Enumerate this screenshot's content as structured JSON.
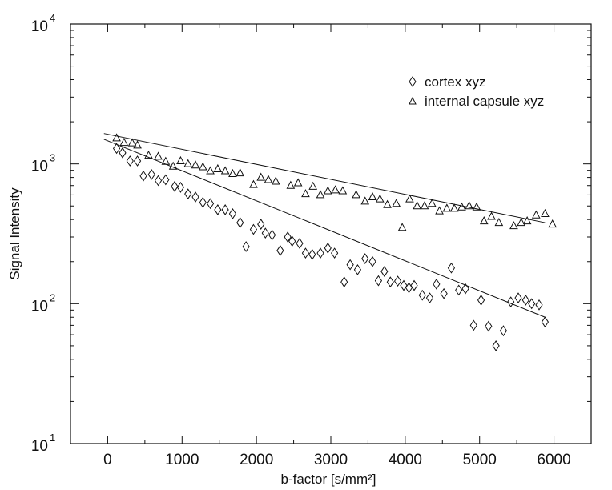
{
  "chart_data": {
    "type": "scatter",
    "title": "",
    "xlabel": "b-factor [s/mm²]",
    "ylabel": "Signal Intensity",
    "xlim": [
      -500,
      6500
    ],
    "ylim": [
      10,
      10000
    ],
    "yscale": "log",
    "grid": false,
    "legend_position": "top-right",
    "x_ticks": [
      0,
      1000,
      2000,
      3000,
      4000,
      5000,
      6000
    ],
    "x_tick_labels": [
      "0",
      "1000",
      "2000",
      "3000",
      "4000",
      "5000",
      "6000"
    ],
    "y_ticks": [
      10,
      100,
      1000,
      10000
    ],
    "y_tick_labels": [
      {
        "base": "10",
        "exp": "1"
      },
      {
        "base": "10",
        "exp": "2"
      },
      {
        "base": "10",
        "exp": "3"
      },
      {
        "base": "10",
        "exp": "4"
      }
    ],
    "series": [
      {
        "name": "cortex xyz",
        "marker": "diamond",
        "points": [
          [
            120,
            1290
          ],
          [
            200,
            1200
          ],
          [
            300,
            1050
          ],
          [
            400,
            1050
          ],
          [
            480,
            820
          ],
          [
            590,
            840
          ],
          [
            680,
            760
          ],
          [
            780,
            770
          ],
          [
            900,
            690
          ],
          [
            980,
            680
          ],
          [
            1080,
            610
          ],
          [
            1180,
            580
          ],
          [
            1280,
            530
          ],
          [
            1380,
            520
          ],
          [
            1480,
            470
          ],
          [
            1580,
            470
          ],
          [
            1680,
            440
          ],
          [
            1780,
            380
          ],
          [
            1860,
            256
          ],
          [
            1960,
            340
          ],
          [
            2060,
            370
          ],
          [
            2120,
            320
          ],
          [
            2210,
            310
          ],
          [
            2320,
            240
          ],
          [
            2420,
            300
          ],
          [
            2480,
            280
          ],
          [
            2580,
            270
          ],
          [
            2660,
            230
          ],
          [
            2750,
            225
          ],
          [
            2860,
            230
          ],
          [
            2960,
            250
          ],
          [
            3050,
            230
          ],
          [
            3180,
            143
          ],
          [
            3260,
            190
          ],
          [
            3360,
            175
          ],
          [
            3460,
            210
          ],
          [
            3560,
            200
          ],
          [
            3640,
            146
          ],
          [
            3720,
            170
          ],
          [
            3800,
            143
          ],
          [
            3900,
            145
          ],
          [
            3980,
            135
          ],
          [
            4050,
            130
          ],
          [
            4120,
            135
          ],
          [
            4230,
            115
          ],
          [
            4330,
            110
          ],
          [
            4420,
            138
          ],
          [
            4520,
            118
          ],
          [
            4620,
            180
          ],
          [
            4720,
            125
          ],
          [
            4810,
            128
          ],
          [
            4920,
            70
          ],
          [
            5020,
            106
          ],
          [
            5120,
            69
          ],
          [
            5220,
            50
          ],
          [
            5320,
            64
          ],
          [
            5420,
            103
          ],
          [
            5520,
            110
          ],
          [
            5620,
            106
          ],
          [
            5700,
            100
          ],
          [
            5800,
            98
          ],
          [
            5880,
            74
          ]
        ],
        "fit": {
          "x": [
            -50,
            5880
          ],
          "y": [
            1500,
            80
          ]
        }
      },
      {
        "name": "internal capsule xyz",
        "marker": "triangle",
        "points": [
          [
            120,
            1530
          ],
          [
            220,
            1420
          ],
          [
            330,
            1410
          ],
          [
            400,
            1360
          ],
          [
            550,
            1150
          ],
          [
            680,
            1130
          ],
          [
            780,
            1040
          ],
          [
            880,
            960
          ],
          [
            980,
            1050
          ],
          [
            1080,
            1000
          ],
          [
            1180,
            980
          ],
          [
            1280,
            950
          ],
          [
            1380,
            890
          ],
          [
            1480,
            920
          ],
          [
            1580,
            890
          ],
          [
            1680,
            850
          ],
          [
            1780,
            860
          ],
          [
            1960,
            710
          ],
          [
            2060,
            800
          ],
          [
            2160,
            770
          ],
          [
            2260,
            750
          ],
          [
            2460,
            700
          ],
          [
            2560,
            730
          ],
          [
            2660,
            610
          ],
          [
            2760,
            690
          ],
          [
            2860,
            600
          ],
          [
            2960,
            640
          ],
          [
            3060,
            650
          ],
          [
            3160,
            640
          ],
          [
            3340,
            600
          ],
          [
            3460,
            540
          ],
          [
            3560,
            580
          ],
          [
            3660,
            560
          ],
          [
            3760,
            510
          ],
          [
            3880,
            520
          ],
          [
            3960,
            350
          ],
          [
            4060,
            560
          ],
          [
            4160,
            500
          ],
          [
            4260,
            500
          ],
          [
            4360,
            520
          ],
          [
            4460,
            460
          ],
          [
            4560,
            480
          ],
          [
            4660,
            480
          ],
          [
            4760,
            490
          ],
          [
            4860,
            500
          ],
          [
            4960,
            490
          ],
          [
            5060,
            390
          ],
          [
            5160,
            420
          ],
          [
            5260,
            380
          ],
          [
            5460,
            360
          ],
          [
            5560,
            380
          ],
          [
            5640,
            390
          ],
          [
            5760,
            430
          ],
          [
            5880,
            440
          ],
          [
            5980,
            370
          ]
        ],
        "fit": {
          "x": [
            -50,
            5880
          ],
          "y": [
            1650,
            380
          ]
        }
      }
    ]
  }
}
